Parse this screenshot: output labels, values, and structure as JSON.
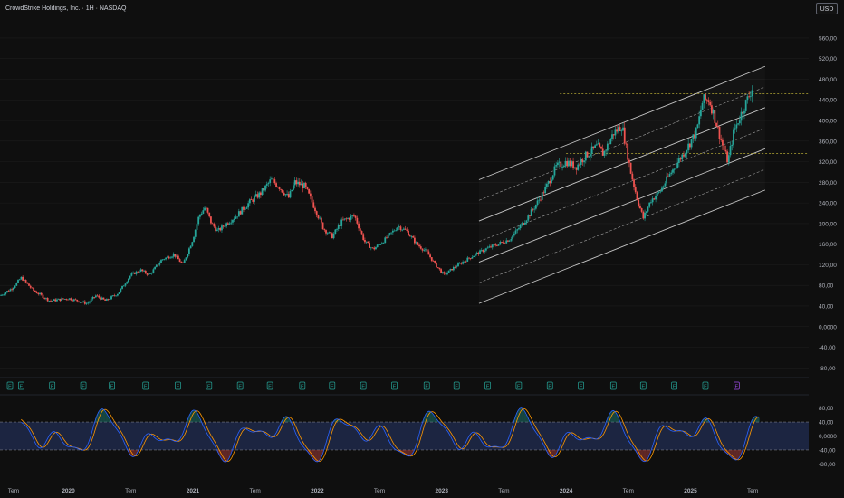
{
  "header": {
    "title": "CrowdStrike Holdings, Inc. · 1H · NASDAQ",
    "currency": "USD"
  },
  "colors": {
    "background": "#0f0f0f",
    "up": "#26a69a",
    "down": "#ef5350",
    "grid": "#1c1c1c",
    "axis_text": "#b2b5be",
    "channel": "#d9d9d9",
    "level": "#d4c63b",
    "earnings": "#26a69a",
    "earnings_last": "#a54ef0",
    "osc_k": "#2962ff",
    "osc_d": "#ff9800",
    "osc_band": "#1f2a4d"
  },
  "chart_data": [
    {
      "type": "candlestick",
      "title": "CrowdStrike Holdings, Inc. · 1H · NASDAQ",
      "y_ticks": [
        "560,00",
        "520,00",
        "480,00",
        "440,00",
        "400,00",
        "360,00",
        "320,00",
        "280,00",
        "240,00",
        "200,00",
        "160,00",
        "120,00",
        "80,00",
        "40,00",
        "0,0000",
        "-40,00",
        "-80,00"
      ],
      "ylim": [
        -90,
        595
      ],
      "x_ticks": [
        "Tem",
        "2020",
        "Tem",
        "2021",
        "Tem",
        "2022",
        "Tem",
        "2023",
        "Tem",
        "2024",
        "Tem",
        "2025",
        "Tem"
      ],
      "xlim": [
        2019.45,
        2025.95
      ],
      "price_path": [
        [
          2019.45,
          60
        ],
        [
          2019.55,
          75
        ],
        [
          2019.62,
          95
        ],
        [
          2019.72,
          70
        ],
        [
          2019.85,
          50
        ],
        [
          2020.0,
          55
        ],
        [
          2020.15,
          45
        ],
        [
          2020.22,
          60
        ],
        [
          2020.3,
          50
        ],
        [
          2020.4,
          65
        ],
        [
          2020.5,
          100
        ],
        [
          2020.58,
          110
        ],
        [
          2020.65,
          100
        ],
        [
          2020.75,
          130
        ],
        [
          2020.85,
          140
        ],
        [
          2020.92,
          120
        ],
        [
          2021.0,
          170
        ],
        [
          2021.05,
          215
        ],
        [
          2021.1,
          232
        ],
        [
          2021.15,
          200
        ],
        [
          2021.2,
          185
        ],
        [
          2021.27,
          200
        ],
        [
          2021.35,
          215
        ],
        [
          2021.45,
          240
        ],
        [
          2021.55,
          260
        ],
        [
          2021.63,
          285
        ],
        [
          2021.7,
          270
        ],
        [
          2021.77,
          250
        ],
        [
          2021.82,
          280
        ],
        [
          2021.9,
          272
        ],
        [
          2021.98,
          230
        ],
        [
          2022.05,
          190
        ],
        [
          2022.12,
          175
        ],
        [
          2022.2,
          205
        ],
        [
          2022.3,
          215
        ],
        [
          2022.38,
          165
        ],
        [
          2022.45,
          150
        ],
        [
          2022.55,
          170
        ],
        [
          2022.65,
          195
        ],
        [
          2022.72,
          185
        ],
        [
          2022.8,
          160
        ],
        [
          2022.88,
          145
        ],
        [
          2022.95,
          120
        ],
        [
          2023.02,
          100
        ],
        [
          2023.1,
          115
        ],
        [
          2023.2,
          130
        ],
        [
          2023.27,
          140
        ],
        [
          2023.35,
          150
        ],
        [
          2023.45,
          160
        ],
        [
          2023.55,
          170
        ],
        [
          2023.6,
          185
        ],
        [
          2023.7,
          215
        ],
        [
          2023.78,
          245
        ],
        [
          2023.85,
          275
        ],
        [
          2023.92,
          310
        ],
        [
          2024.0,
          320
        ],
        [
          2024.08,
          310
        ],
        [
          2024.15,
          330
        ],
        [
          2024.25,
          350
        ],
        [
          2024.3,
          335
        ],
        [
          2024.38,
          375
        ],
        [
          2024.45,
          390
        ],
        [
          2024.52,
          300
        ],
        [
          2024.57,
          250
        ],
        [
          2024.62,
          210
        ],
        [
          2024.68,
          245
        ],
        [
          2024.75,
          260
        ],
        [
          2024.82,
          290
        ],
        [
          2024.9,
          320
        ],
        [
          2024.98,
          350
        ],
        [
          2025.05,
          380
        ],
        [
          2025.1,
          440
        ],
        [
          2025.15,
          440
        ],
        [
          2025.2,
          400
        ],
        [
          2025.26,
          350
        ],
        [
          2025.3,
          320
        ],
        [
          2025.35,
          380
        ],
        [
          2025.42,
          420
        ],
        [
          2025.5,
          465
        ]
      ],
      "annotations": {
        "level_lines": [
          452,
          336
        ],
        "channel": {
          "x1": 2023.3,
          "y1_upper": 285,
          "x2": 2025.6,
          "y2_upper": 505,
          "offsets": [
            0,
            -40,
            -80,
            -120,
            -160,
            -200,
            -240
          ]
        }
      }
    },
    {
      "type": "line",
      "name": "oscillator",
      "y_ticks": [
        "80,00",
        "40,00",
        "0,0000",
        "-40,00",
        "-80,00"
      ],
      "ylim": [
        -100,
        100
      ],
      "bands": [
        40,
        -40
      ]
    }
  ],
  "earnings_markers": {
    "label": "E",
    "x": [
      2019.53,
      2019.62,
      2019.87,
      2020.12,
      2020.35,
      2020.62,
      2020.88,
      2021.13,
      2021.38,
      2021.62,
      2021.88,
      2022.12,
      2022.37,
      2022.62,
      2022.88,
      2023.12,
      2023.37,
      2023.62,
      2023.87,
      2024.12,
      2024.38,
      2024.62,
      2024.87,
      2025.12,
      2025.37
    ]
  }
}
